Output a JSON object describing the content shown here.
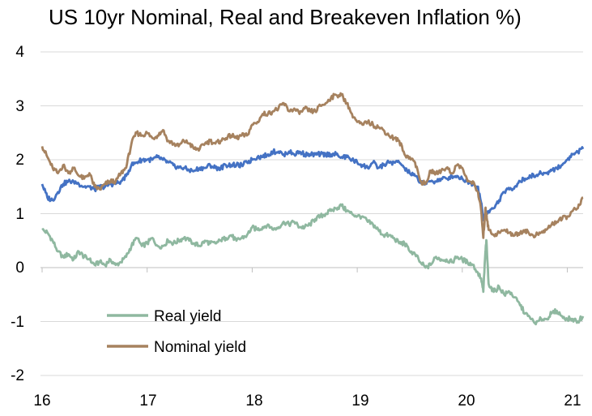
{
  "chart_data": {
    "type": "line",
    "title": "US 10yr Nominal, Real and Breakeven Inflation %)",
    "xlabel": "",
    "ylabel": "",
    "x_ticks": [
      "16",
      "17",
      "18",
      "19",
      "20",
      "21"
    ],
    "y_ticks": [
      "4",
      "3",
      "2",
      "1",
      "0",
      "-1",
      "-2"
    ],
    "xlim": [
      2016.0,
      2021.15
    ],
    "ylim": [
      -2,
      4
    ],
    "grid": true,
    "legend": "lower-left",
    "series": [
      {
        "name": "Real yield",
        "color": "#8fb8a0",
        "x": [
          2016.0,
          2016.05,
          2016.1,
          2016.15,
          2016.2,
          2016.25,
          2016.3,
          2016.35,
          2016.4,
          2016.45,
          2016.5,
          2016.55,
          2016.6,
          2016.65,
          2016.7,
          2016.75,
          2016.8,
          2016.85,
          2016.9,
          2016.95,
          2017.0,
          2017.05,
          2017.1,
          2017.15,
          2017.2,
          2017.25,
          2017.3,
          2017.35,
          2017.4,
          2017.45,
          2017.5,
          2017.55,
          2017.6,
          2017.65,
          2017.7,
          2017.75,
          2017.8,
          2017.85,
          2017.9,
          2017.95,
          2018.0,
          2018.05,
          2018.1,
          2018.15,
          2018.2,
          2018.25,
          2018.3,
          2018.35,
          2018.4,
          2018.45,
          2018.5,
          2018.55,
          2018.6,
          2018.65,
          2018.7,
          2018.75,
          2018.8,
          2018.85,
          2018.9,
          2018.95,
          2019.0,
          2019.05,
          2019.1,
          2019.15,
          2019.2,
          2019.25,
          2019.3,
          2019.35,
          2019.4,
          2019.45,
          2019.5,
          2019.55,
          2019.6,
          2019.65,
          2019.7,
          2019.75,
          2019.8,
          2019.85,
          2019.9,
          2019.95,
          2020.0,
          2020.05,
          2020.1,
          2020.15,
          2020.18,
          2020.2,
          2020.22,
          2020.23,
          2020.25,
          2020.3,
          2020.35,
          2020.4,
          2020.45,
          2020.5,
          2020.55,
          2020.6,
          2020.65,
          2020.7,
          2020.75,
          2020.8,
          2020.85,
          2020.9,
          2020.95,
          2021.0,
          2021.05,
          2021.1,
          2021.15
        ],
        "values": [
          0.7,
          0.65,
          0.5,
          0.3,
          0.2,
          0.25,
          0.15,
          0.3,
          0.2,
          0.15,
          0.05,
          0.1,
          0.05,
          0.15,
          0.05,
          0.1,
          0.2,
          0.4,
          0.55,
          0.4,
          0.45,
          0.55,
          0.4,
          0.4,
          0.5,
          0.45,
          0.5,
          0.55,
          0.5,
          0.45,
          0.4,
          0.5,
          0.45,
          0.45,
          0.5,
          0.55,
          0.6,
          0.5,
          0.55,
          0.6,
          0.75,
          0.7,
          0.75,
          0.8,
          0.7,
          0.75,
          0.85,
          0.8,
          0.85,
          0.75,
          0.75,
          0.8,
          0.9,
          0.95,
          1.0,
          1.05,
          1.1,
          1.15,
          1.05,
          1.0,
          0.95,
          0.95,
          0.85,
          0.8,
          0.7,
          0.6,
          0.6,
          0.55,
          0.45,
          0.45,
          0.3,
          0.25,
          0.1,
          0.0,
          0.05,
          0.2,
          0.15,
          0.15,
          0.1,
          0.2,
          0.15,
          0.1,
          0.05,
          -0.1,
          -0.2,
          -0.45,
          0.3,
          0.5,
          -0.3,
          -0.45,
          -0.35,
          -0.5,
          -0.45,
          -0.55,
          -0.7,
          -0.85,
          -0.95,
          -1.05,
          -0.95,
          -0.95,
          -0.85,
          -0.8,
          -0.9,
          -0.95,
          -0.95,
          -1.0,
          -0.9
        ]
      },
      {
        "name": "Nominal yield",
        "color": "#a6825f",
        "x": [
          2016.0,
          2016.05,
          2016.1,
          2016.15,
          2016.2,
          2016.25,
          2016.3,
          2016.35,
          2016.4,
          2016.45,
          2016.5,
          2016.55,
          2016.6,
          2016.65,
          2016.7,
          2016.75,
          2016.8,
          2016.85,
          2016.9,
          2016.95,
          2017.0,
          2017.05,
          2017.1,
          2017.15,
          2017.2,
          2017.25,
          2017.3,
          2017.35,
          2017.4,
          2017.45,
          2017.5,
          2017.55,
          2017.6,
          2017.65,
          2017.7,
          2017.75,
          2017.8,
          2017.85,
          2017.9,
          2017.95,
          2018.0,
          2018.05,
          2018.1,
          2018.15,
          2018.2,
          2018.25,
          2018.3,
          2018.35,
          2018.4,
          2018.45,
          2018.5,
          2018.55,
          2018.6,
          2018.65,
          2018.7,
          2018.75,
          2018.8,
          2018.85,
          2018.9,
          2018.95,
          2019.0,
          2019.05,
          2019.1,
          2019.15,
          2019.2,
          2019.25,
          2019.3,
          2019.35,
          2019.4,
          2019.45,
          2019.5,
          2019.55,
          2019.6,
          2019.65,
          2019.7,
          2019.75,
          2019.8,
          2019.85,
          2019.9,
          2019.95,
          2020.0,
          2020.05,
          2020.1,
          2020.15,
          2020.18,
          2020.2,
          2020.22,
          2020.23,
          2020.25,
          2020.3,
          2020.35,
          2020.4,
          2020.45,
          2020.5,
          2020.55,
          2020.6,
          2020.65,
          2020.7,
          2020.75,
          2020.8,
          2020.85,
          2020.9,
          2020.95,
          2021.0,
          2021.05,
          2021.1,
          2021.15
        ],
        "values": [
          2.25,
          2.05,
          1.85,
          1.75,
          1.9,
          1.75,
          1.85,
          1.7,
          1.65,
          1.75,
          1.5,
          1.45,
          1.55,
          1.6,
          1.6,
          1.75,
          1.85,
          2.3,
          2.5,
          2.45,
          2.5,
          2.4,
          2.45,
          2.55,
          2.35,
          2.3,
          2.25,
          2.35,
          2.3,
          2.2,
          2.2,
          2.3,
          2.35,
          2.3,
          2.35,
          2.4,
          2.45,
          2.4,
          2.45,
          2.45,
          2.65,
          2.7,
          2.85,
          2.85,
          2.9,
          2.95,
          3.05,
          2.9,
          2.95,
          2.85,
          2.95,
          2.9,
          2.9,
          3.0,
          3.05,
          3.15,
          3.2,
          3.2,
          3.05,
          2.85,
          2.7,
          2.65,
          2.7,
          2.65,
          2.6,
          2.55,
          2.45,
          2.4,
          2.35,
          2.1,
          2.05,
          1.95,
          1.6,
          1.55,
          1.8,
          1.75,
          1.8,
          1.85,
          1.75,
          1.9,
          1.85,
          1.6,
          1.6,
          1.4,
          1.05,
          0.55,
          1.1,
          1.0,
          0.7,
          0.6,
          0.65,
          0.7,
          0.65,
          0.6,
          0.65,
          0.7,
          0.6,
          0.6,
          0.65,
          0.7,
          0.8,
          0.85,
          0.9,
          0.95,
          1.05,
          1.1,
          1.3
        ]
      },
      {
        "name": "",
        "color": "#4472c4",
        "x": [
          2016.0,
          2016.05,
          2016.1,
          2016.15,
          2016.2,
          2016.25,
          2016.3,
          2016.35,
          2016.4,
          2016.45,
          2016.5,
          2016.55,
          2016.6,
          2016.65,
          2016.7,
          2016.75,
          2016.8,
          2016.85,
          2016.9,
          2016.95,
          2017.0,
          2017.05,
          2017.1,
          2017.15,
          2017.2,
          2017.25,
          2017.3,
          2017.35,
          2017.4,
          2017.45,
          2017.5,
          2017.55,
          2017.6,
          2017.65,
          2017.7,
          2017.75,
          2017.8,
          2017.85,
          2017.9,
          2017.95,
          2018.0,
          2018.05,
          2018.1,
          2018.15,
          2018.2,
          2018.25,
          2018.3,
          2018.35,
          2018.4,
          2018.45,
          2018.5,
          2018.55,
          2018.6,
          2018.65,
          2018.7,
          2018.75,
          2018.8,
          2018.85,
          2018.9,
          2018.95,
          2019.0,
          2019.05,
          2019.1,
          2019.15,
          2019.2,
          2019.25,
          2019.3,
          2019.35,
          2019.4,
          2019.45,
          2019.5,
          2019.55,
          2019.6,
          2019.65,
          2019.7,
          2019.75,
          2019.8,
          2019.85,
          2019.9,
          2019.95,
          2020.0,
          2020.05,
          2020.1,
          2020.15,
          2020.18,
          2020.2,
          2020.22,
          2020.23,
          2020.25,
          2020.3,
          2020.35,
          2020.4,
          2020.45,
          2020.5,
          2020.55,
          2020.6,
          2020.65,
          2020.7,
          2020.75,
          2020.8,
          2020.85,
          2020.9,
          2020.95,
          2021.0,
          2021.05,
          2021.1,
          2021.15
        ],
        "values": [
          1.55,
          1.3,
          1.25,
          1.4,
          1.55,
          1.6,
          1.6,
          1.55,
          1.5,
          1.5,
          1.45,
          1.5,
          1.5,
          1.55,
          1.55,
          1.6,
          1.7,
          1.9,
          1.95,
          2.0,
          2.0,
          2.0,
          2.05,
          2.0,
          1.95,
          1.9,
          1.85,
          1.85,
          1.8,
          1.8,
          1.85,
          1.85,
          1.9,
          1.85,
          1.85,
          1.9,
          1.9,
          1.9,
          1.9,
          1.95,
          2.0,
          2.05,
          2.05,
          2.1,
          2.15,
          2.15,
          2.1,
          2.15,
          2.1,
          2.15,
          2.1,
          2.1,
          2.1,
          2.1,
          2.1,
          2.1,
          2.1,
          2.05,
          2.05,
          2.0,
          1.95,
          1.9,
          1.85,
          1.95,
          1.85,
          1.9,
          1.95,
          1.95,
          1.95,
          1.85,
          1.75,
          1.7,
          1.6,
          1.55,
          1.6,
          1.6,
          1.65,
          1.65,
          1.7,
          1.7,
          1.65,
          1.6,
          1.55,
          1.5,
          1.2,
          0.9,
          1.0,
          1.0,
          1.05,
          1.1,
          1.25,
          1.4,
          1.45,
          1.5,
          1.6,
          1.65,
          1.7,
          1.7,
          1.75,
          1.75,
          1.8,
          1.85,
          1.9,
          2.0,
          2.1,
          2.15,
          2.2
        ]
      }
    ]
  }
}
